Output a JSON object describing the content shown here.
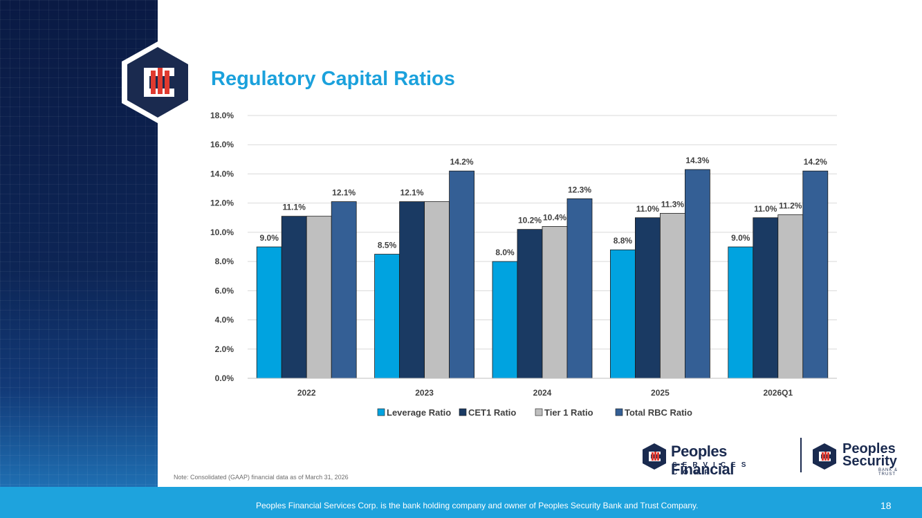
{
  "slide": {
    "title": "Regulatory Capital Ratios",
    "note": "Note: Consolidated (GAAP) financial data as of March 31, 2026",
    "footer": "Peoples Financial Services Corp. is the bank holding company and owner of Peoples Security Bank and Trust Company.",
    "page_number": "18"
  },
  "brands": {
    "pfs_line1": "Peoples Financial",
    "pfs_line2": "SERVICES CORP.",
    "psb_line1": "Peoples",
    "psb_line2": "Security",
    "psb_line3": "BANK & TRUST"
  },
  "colors": {
    "title": "#1ba1dc",
    "footer": "#1ea3dd",
    "navy": "#1a2a4f",
    "logo_red": "#e03a2f"
  },
  "chart_data": {
    "type": "bar",
    "categories": [
      "2022",
      "2023",
      "2024",
      "2025",
      "2026Q1"
    ],
    "series": [
      {
        "name": "Leverage Ratio",
        "color": "#00a3e0",
        "values": [
          9.0,
          8.5,
          8.0,
          8.8,
          9.0
        ],
        "labels": [
          "9.0%",
          "8.5%",
          "8.0%",
          "8.8%",
          "9.0%"
        ]
      },
      {
        "name": "CET1 Ratio",
        "color": "#1a3a63",
        "values": [
          11.1,
          12.1,
          10.2,
          11.0,
          11.0
        ],
        "labels": [
          "11.1%",
          "12.1%",
          "10.2%",
          "11.0%",
          "11.0%"
        ]
      },
      {
        "name": "Tier 1 Ratio",
        "color": "#bfbfbf",
        "values": [
          11.1,
          12.1,
          10.4,
          11.3,
          11.2
        ],
        "labels": [
          "",
          "",
          "10.4%",
          "11.3%",
          "11.2%"
        ]
      },
      {
        "name": "Total RBC Ratio",
        "color": "#345f95",
        "values": [
          12.1,
          14.2,
          12.3,
          14.3,
          14.2
        ],
        "labels": [
          "12.1%",
          "14.2%",
          "12.3%",
          "14.3%",
          "14.2%"
        ]
      }
    ],
    "y_ticks": [
      "0.0%",
      "2.0%",
      "4.0%",
      "6.0%",
      "8.0%",
      "10.0%",
      "12.0%",
      "14.0%",
      "16.0%",
      "18.0%"
    ],
    "ylim": [
      0,
      18
    ],
    "grid": true,
    "legend": "bottom"
  }
}
